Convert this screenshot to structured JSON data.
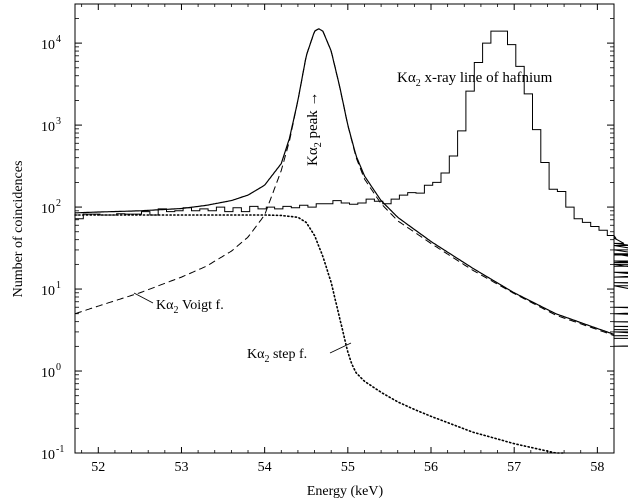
{
  "chart_data": {
    "type": "line",
    "title": "",
    "xlabel": "Energy (keV)",
    "ylabel": "Number of coincidences",
    "xlim": [
      51.72,
      58.2
    ],
    "ylim": [
      0.1,
      30000
    ],
    "yscale": "log",
    "x_ticks": [
      "52",
      "53",
      "54",
      "55",
      "56",
      "57",
      "58"
    ],
    "y_ticks": [
      {
        "value": 0.1,
        "base": "10",
        "exp": "-1"
      },
      {
        "value": 1,
        "base": "10",
        "exp": "0"
      },
      {
        "value": 10,
        "base": "10",
        "exp": "1"
      },
      {
        "value": 100,
        "base": "10",
        "exp": "2"
      },
      {
        "value": 1000,
        "base": "10",
        "exp": "3"
      },
      {
        "value": 10000,
        "base": "10",
        "exp": "4"
      }
    ],
    "grid": false,
    "legend": "none",
    "annotations": {
      "line_title": {
        "pre": "K",
        "alpha": "α",
        "sub": "2",
        "post": " x-ray line of hafnium"
      },
      "peak": {
        "pre": "K",
        "alpha": "α",
        "sub": "2",
        "post": " peak →"
      },
      "voigt": {
        "pre": "K",
        "alpha": "α",
        "sub": "2",
        "post": " Voigt f."
      },
      "step": {
        "pre": "K",
        "alpha": "α",
        "sub": "2",
        "post": " step f."
      }
    },
    "histogram": {
      "bin_width": 0.1,
      "x_start": 51.72,
      "values": [
        72,
        82,
        82,
        80,
        80,
        83,
        82,
        82,
        88,
        80,
        95,
        88,
        90,
        98,
        90,
        95,
        90,
        100,
        88,
        98,
        88,
        102,
        95,
        100,
        95,
        102,
        98,
        105,
        100,
        110,
        110,
        120,
        112,
        108,
        112,
        125,
        118,
        110,
        125,
        140,
        150,
        148,
        185,
        200,
        260,
        420,
        850,
        2600,
        5800,
        10000,
        14000,
        14000,
        9600,
        5200,
        2400,
        880,
        350,
        165,
        155,
        100,
        72,
        65,
        58,
        52,
        45,
        42,
        36,
        34,
        30,
        26,
        27,
        21,
        22,
        19,
        20,
        14,
        16,
        14,
        16,
        12,
        11,
        11,
        5,
        5,
        5,
        6,
        5,
        5,
        6,
        5,
        4,
        3.5,
        3.2,
        3,
        2,
        2,
        2.5,
        2.7,
        3
      ]
    },
    "series": [
      {
        "name": "fit",
        "style": "solid",
        "x": [
          51.72,
          52,
          52.5,
          53,
          53.3,
          53.6,
          53.8,
          54,
          54.2,
          54.3,
          54.4,
          54.5,
          54.6,
          54.65,
          54.7,
          54.8,
          54.9,
          55,
          55.1,
          55.2,
          55.4,
          55.6,
          56,
          56.5,
          57,
          57.5,
          58,
          58.2
        ],
        "y": [
          85,
          87,
          90,
          96,
          105,
          120,
          140,
          185,
          340,
          700,
          2000,
          7000,
          14000,
          15000,
          14000,
          8000,
          3000,
          1000,
          420,
          240,
          120,
          75,
          38,
          18,
          9,
          5,
          3.3,
          2.8
        ]
      },
      {
        "name": "Voigt f.",
        "style": "dashed",
        "x": [
          51.72,
          52,
          52.5,
          53,
          53.3,
          53.6,
          53.8,
          54,
          54.2,
          54.3,
          54.4,
          54.5,
          54.6,
          54.65,
          54.7,
          54.8,
          54.9,
          55,
          55.1,
          55.2,
          55.4,
          55.6,
          56,
          56.5,
          57,
          57.5,
          58,
          58.2
        ],
        "y": [
          5,
          6.2,
          9,
          14,
          19,
          29,
          43,
          80,
          280,
          650,
          2000,
          7000,
          14000,
          15000,
          14000,
          8000,
          3000,
          1000,
          400,
          220,
          110,
          68,
          36,
          17,
          8.8,
          4.8,
          3.2,
          2.7
        ]
      },
      {
        "name": "step f.",
        "style": "dotted",
        "x": [
          51.72,
          52,
          53,
          53.8,
          54,
          54.2,
          54.4,
          54.5,
          54.6,
          54.7,
          54.8,
          54.9,
          55,
          55.05,
          55.1,
          55.2,
          55.4,
          55.6,
          55.8,
          56,
          56.5,
          57,
          57.5,
          57.6
        ],
        "y": [
          80,
          80,
          80,
          80,
          80,
          79,
          75,
          65,
          45,
          25,
          12,
          4.5,
          1.7,
          1.2,
          0.95,
          0.75,
          0.55,
          0.42,
          0.34,
          0.28,
          0.18,
          0.13,
          0.1,
          0.095
        ]
      }
    ]
  }
}
